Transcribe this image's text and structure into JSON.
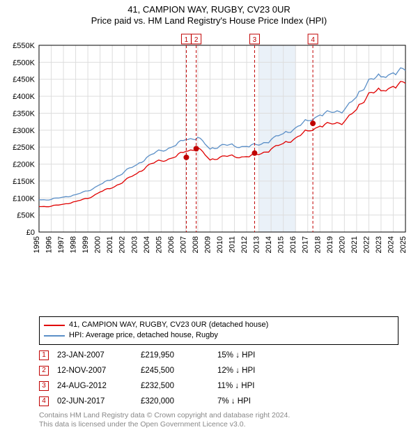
{
  "title_line1": "41, CAMPION WAY, RUGBY, CV23 0UR",
  "title_line2": "Price paid vs. HM Land Registry's House Price Index (HPI)",
  "chart": {
    "type": "line",
    "background_color": "#ffffff",
    "grid_color": "#dddddd",
    "axis_color": "#000000",
    "band_fill": "#eaf1f8",
    "band_years": [
      2013,
      2016
    ],
    "sale_line_color": "#c00000",
    "sale_line_dash": "4 3",
    "sale_marker_fill": "#ffffff",
    "label_fontsize": 11,
    "tick_fontsize": 11,
    "x_years": [
      1995,
      1996,
      1997,
      1998,
      1999,
      2000,
      2001,
      2002,
      2003,
      2004,
      2005,
      2006,
      2007,
      2008,
      2009,
      2010,
      2011,
      2012,
      2013,
      2014,
      2015,
      2016,
      2017,
      2018,
      2019,
      2020,
      2021,
      2022,
      2023,
      2024,
      2025
    ],
    "ylim": [
      0,
      550000
    ],
    "ytick_step": 50000,
    "ytick_labels": [
      "£0",
      "£50K",
      "£100K",
      "£150K",
      "£200K",
      "£250K",
      "£300K",
      "£350K",
      "£400K",
      "£450K",
      "£500K",
      "£550K"
    ],
    "series": [
      {
        "name": "hpi",
        "color": "#5b8fc7",
        "line_width": 1.3,
        "values_by_year": {
          "1995": 95000,
          "1996": 96000,
          "1997": 103000,
          "1998": 110000,
          "1999": 121000,
          "2000": 140000,
          "2001": 155000,
          "2002": 178000,
          "2003": 198000,
          "2004": 225000,
          "2005": 240000,
          "2006": 252000,
          "2007": 272000,
          "2008": 279000,
          "2009": 244000,
          "2010": 258000,
          "2011": 253000,
          "2012": 252000,
          "2013": 256000,
          "2014": 272000,
          "2015": 290000,
          "2016": 307000,
          "2017": 328000,
          "2018": 345000,
          "2019": 352000,
          "2020": 360000,
          "2021": 398000,
          "2022": 450000,
          "2023": 457000,
          "2024": 469000,
          "2025": 476000
        }
      },
      {
        "name": "price_paid",
        "color": "#e00000",
        "line_width": 1.3,
        "values_by_year": {
          "1995": 75000,
          "1996": 76000,
          "1997": 82000,
          "1998": 90000,
          "1999": 99000,
          "2000": 118000,
          "2001": 130000,
          "2002": 151000,
          "2003": 172000,
          "2004": 199000,
          "2005": 210000,
          "2006": 219000,
          "2007": 237000,
          "2008": 248000,
          "2009": 212000,
          "2010": 224000,
          "2011": 222000,
          "2012": 222000,
          "2013": 228000,
          "2014": 244000,
          "2015": 261000,
          "2016": 277000,
          "2017": 298000,
          "2018": 312000,
          "2019": 318000,
          "2020": 325000,
          "2021": 361000,
          "2022": 410000,
          "2023": 416000,
          "2024": 429000,
          "2025": 438000
        }
      }
    ],
    "sale_points": [
      {
        "n": 1,
        "year": 2007.06,
        "value": 219950
      },
      {
        "n": 2,
        "year": 2007.87,
        "value": 245500
      },
      {
        "n": 3,
        "year": 2012.65,
        "value": 232500
      },
      {
        "n": 4,
        "year": 2017.42,
        "value": 320000
      }
    ]
  },
  "legend": {
    "line1_color": "#e00000",
    "line1_label": "41, CAMPION WAY, RUGBY, CV23 0UR (detached house)",
    "line2_color": "#5b8fc7",
    "line2_label": "HPI: Average price, detached house, Rugby"
  },
  "sales": [
    {
      "n": "1",
      "date": "23-JAN-2007",
      "price": "£219,950",
      "diff": "15% ↓ HPI"
    },
    {
      "n": "2",
      "date": "12-NOV-2007",
      "price": "£245,500",
      "diff": "12% ↓ HPI"
    },
    {
      "n": "3",
      "date": "24-AUG-2012",
      "price": "£232,500",
      "diff": "11% ↓ HPI"
    },
    {
      "n": "4",
      "date": "02-JUN-2017",
      "price": "£320,000",
      "diff": "7% ↓ HPI"
    }
  ],
  "sale_marker_border": "#c00000",
  "footer_line1": "Contains HM Land Registry data © Crown copyright and database right 2024.",
  "footer_line2": "This data is licensed under the Open Government Licence v3.0."
}
